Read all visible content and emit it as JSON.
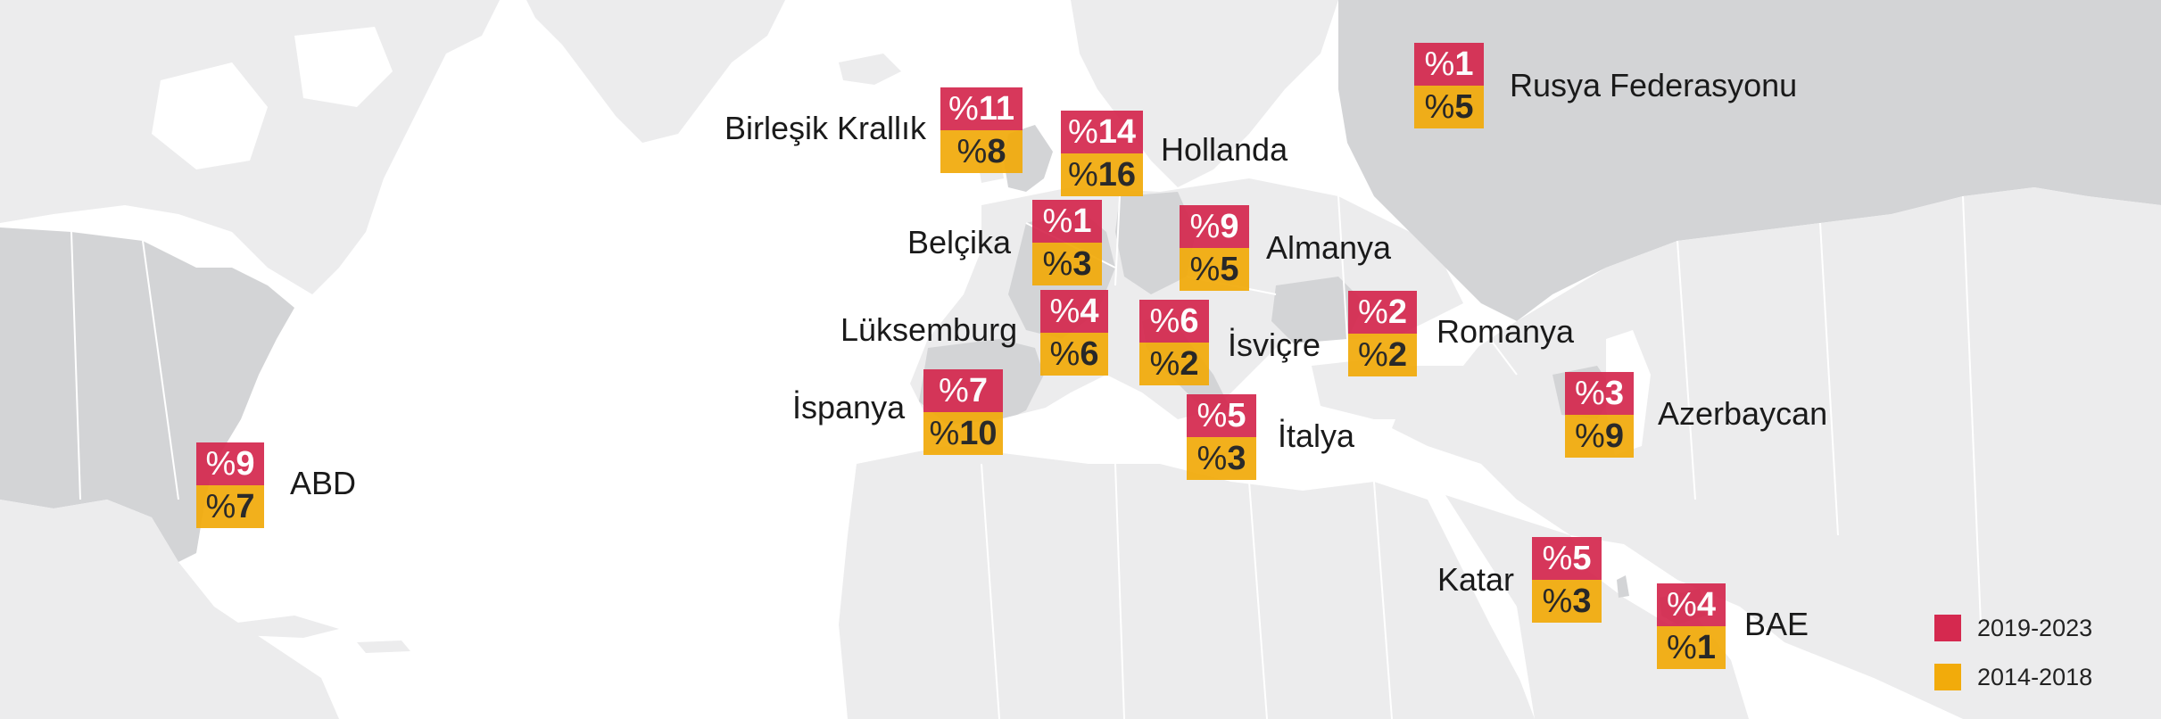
{
  "colors": {
    "recent": "#d5294f",
    "prior": "#f2ab0b",
    "land_highlight": "#d3d4d6",
    "land_other": "#ececed",
    "ocean": "#ffffff"
  },
  "legend": {
    "recent": "2019-2023",
    "prior": "2014-2018"
  },
  "markers": [
    {
      "id": "abd",
      "country": "ABD",
      "recent": {
        "pct": "%",
        "num": "9"
      },
      "prior": {
        "pct": "%",
        "num": "7"
      }
    },
    {
      "id": "birlesik-krallik",
      "country": "Birleşik Krallık",
      "recent": {
        "pct": "%",
        "num": "11"
      },
      "prior": {
        "pct": "%",
        "num": "8"
      }
    },
    {
      "id": "hollanda",
      "country": "Hollanda",
      "recent": {
        "pct": "%",
        "num": "14"
      },
      "prior": {
        "pct": "%",
        "num": "16"
      }
    },
    {
      "id": "belcika",
      "country": "Belçika",
      "recent": {
        "pct": "%",
        "num": "1"
      },
      "prior": {
        "pct": "%",
        "num": "3"
      }
    },
    {
      "id": "almanya",
      "country": "Almanya",
      "recent": {
        "pct": "%",
        "num": "9"
      },
      "prior": {
        "pct": "%",
        "num": "5"
      }
    },
    {
      "id": "luksemburg",
      "country": "Lüksemburg",
      "recent": {
        "pct": "%",
        "num": "4"
      },
      "prior": {
        "pct": "%",
        "num": "6"
      }
    },
    {
      "id": "isvicre",
      "country": "İsviçre",
      "recent": {
        "pct": "%",
        "num": "6"
      },
      "prior": {
        "pct": "%",
        "num": "2"
      }
    },
    {
      "id": "romanya",
      "country": "Romanya",
      "recent": {
        "pct": "%",
        "num": "2"
      },
      "prior": {
        "pct": "%",
        "num": "2"
      }
    },
    {
      "id": "ispanya",
      "country": "İspanya",
      "recent": {
        "pct": "%",
        "num": "7"
      },
      "prior": {
        "pct": "%",
        "num": "10"
      }
    },
    {
      "id": "italya",
      "country": "İtalya",
      "recent": {
        "pct": "%",
        "num": "5"
      },
      "prior": {
        "pct": "%",
        "num": "3"
      }
    },
    {
      "id": "rusya-federasyonu",
      "country": "Rusya Federasyonu",
      "recent": {
        "pct": "%",
        "num": "1"
      },
      "prior": {
        "pct": "%",
        "num": "5"
      }
    },
    {
      "id": "azerbaycan",
      "country": "Azerbaycan",
      "recent": {
        "pct": "%",
        "num": "3"
      },
      "prior": {
        "pct": "%",
        "num": "9"
      }
    },
    {
      "id": "katar",
      "country": "Katar",
      "recent": {
        "pct": "%",
        "num": "5"
      },
      "prior": {
        "pct": "%",
        "num": "3"
      }
    },
    {
      "id": "bae",
      "country": "BAE",
      "recent": {
        "pct": "%",
        "num": "4"
      },
      "prior": {
        "pct": "%",
        "num": "1"
      }
    }
  ]
}
